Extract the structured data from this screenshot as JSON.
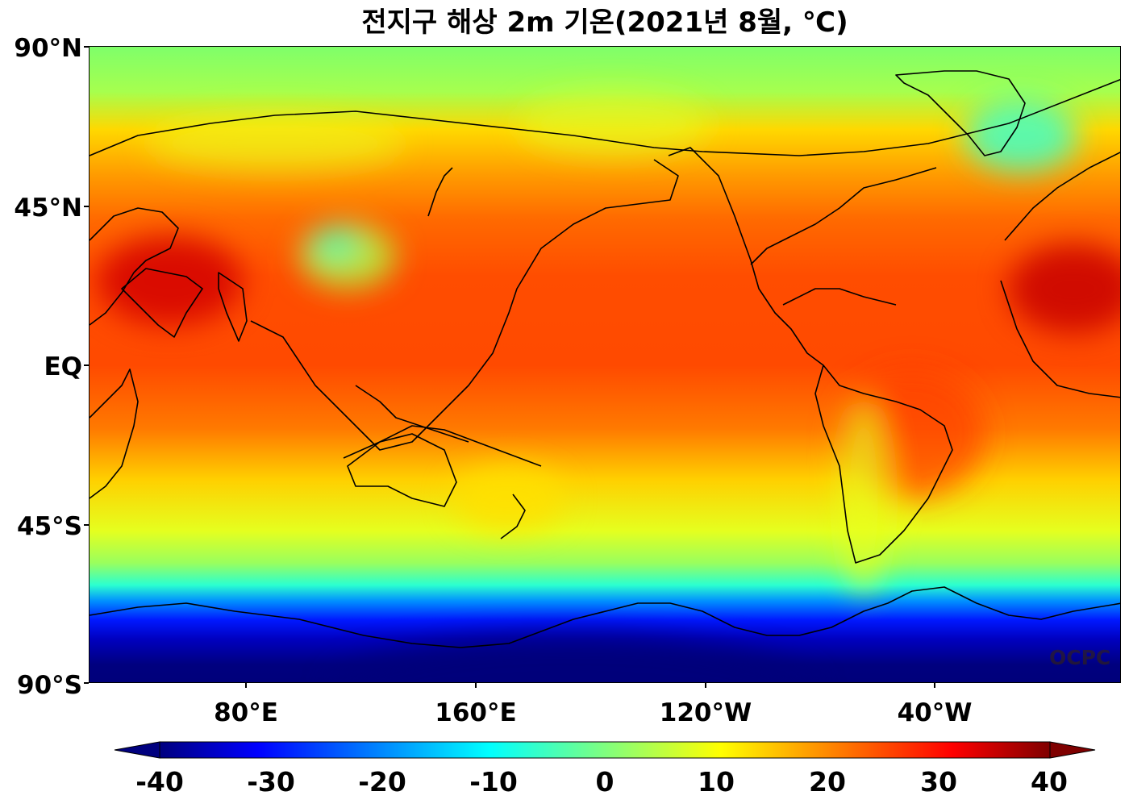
{
  "title": "전지구 해상 2m 기온(2021년 8월, ℃)",
  "y_axis_labels": [
    "90°N",
    "45°N",
    "EQ",
    "45°S",
    "90°S"
  ],
  "x_axis_labels": [
    "80°E",
    "160°E",
    "120°W",
    "40°W"
  ],
  "colorbar": {
    "labels": [
      "-40",
      "-30",
      "-20",
      "-10",
      "0",
      "10",
      "20",
      "30",
      "40"
    ],
    "range": [
      -40,
      40
    ],
    "extend": "both",
    "colormap": [
      "#00007f",
      "#0000ff",
      "#007fff",
      "#00ffff",
      "#7fff7f",
      "#ffff00",
      "#ff7f00",
      "#ff0000",
      "#7f0000"
    ]
  },
  "watermark": "OCPC",
  "chart_data": {
    "type": "heatmap",
    "projection": "PlateCarree, central longitude 180°",
    "variable": "2m air temperature",
    "units": "℃",
    "lon_range": [
      20,
      380
    ],
    "lat_range": [
      -90,
      90
    ]
  }
}
